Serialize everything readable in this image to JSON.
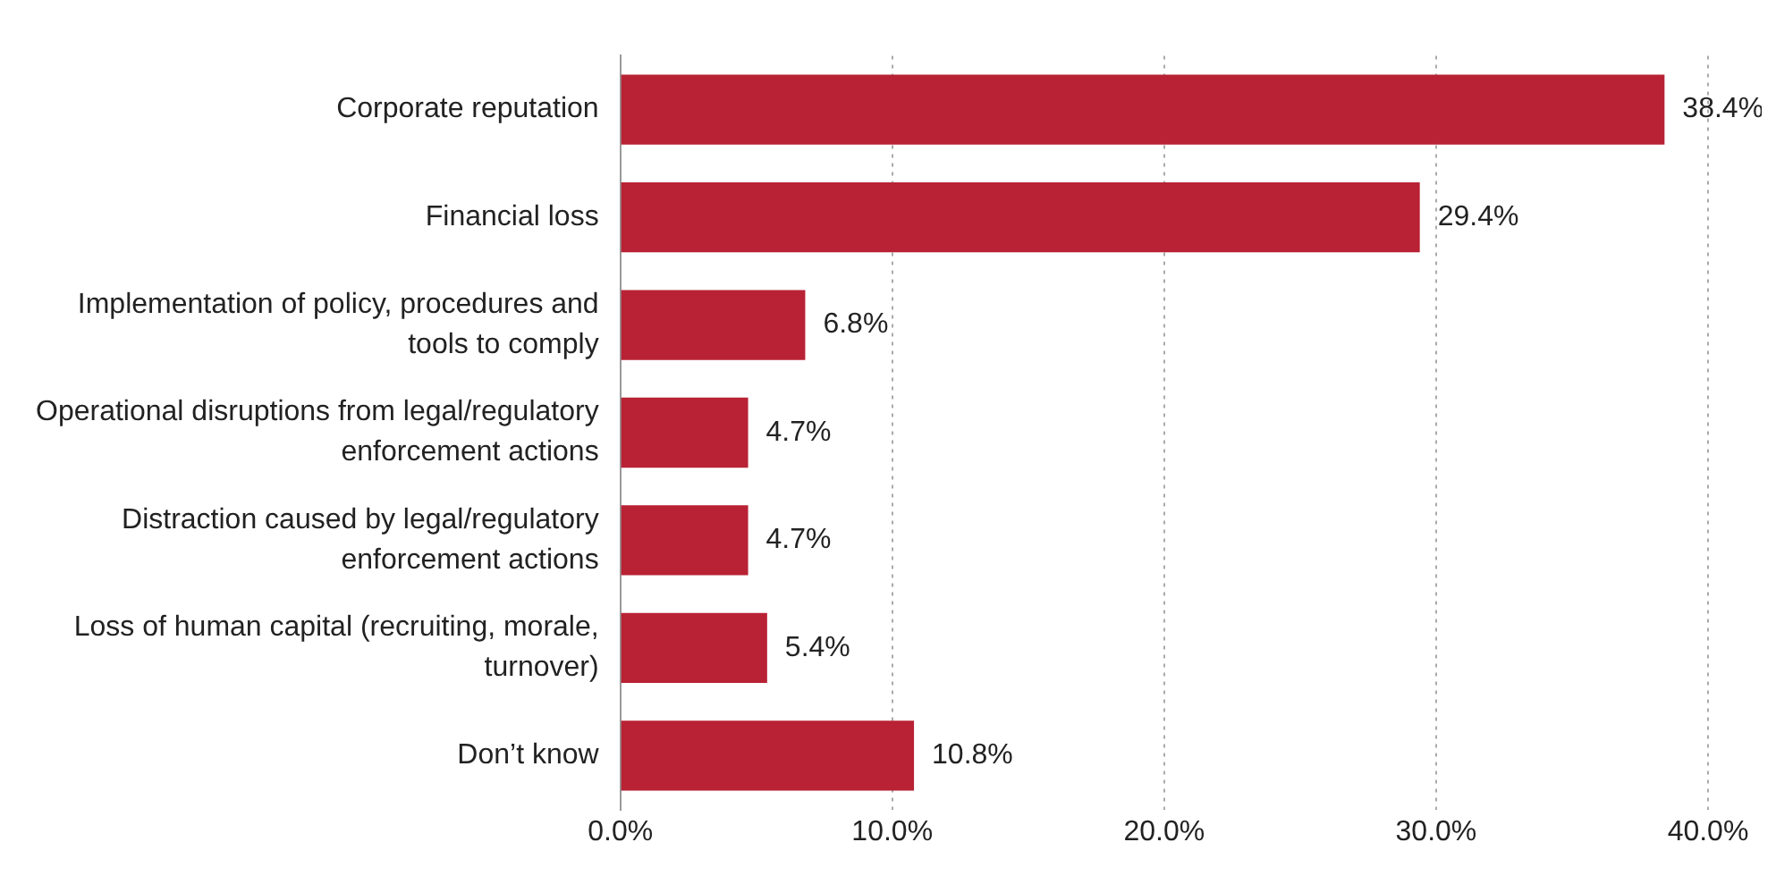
{
  "chart_data": {
    "type": "bar",
    "orientation": "horizontal",
    "categories": [
      "Corporate reputation",
      "Financial loss",
      "Implementation of policy, procedures and tools to comply",
      "Operational disruptions from legal/regulatory enforcement actions",
      "Distraction caused by legal/regulatory enforcement actions",
      "Loss of human capital (recruiting, morale, turnover)",
      "Don’t know"
    ],
    "values": [
      38.4,
      29.4,
      6.8,
      4.7,
      4.7,
      5.4,
      10.8
    ],
    "value_labels": [
      "38.4%",
      "29.4%",
      "6.8%",
      "4.7%",
      "4.7%",
      "5.4%",
      "10.8%"
    ],
    "color": "#b82234",
    "xlim": [
      0,
      40
    ],
    "xticks": [
      {
        "value": 0,
        "label": "0.0%"
      },
      {
        "value": 10,
        "label": "10.0%"
      },
      {
        "value": 20,
        "label": "20.0%"
      },
      {
        "value": 30,
        "label": "30.0%"
      },
      {
        "value": 40,
        "label": "40.0%"
      }
    ],
    "grid": "x",
    "legend": false
  }
}
